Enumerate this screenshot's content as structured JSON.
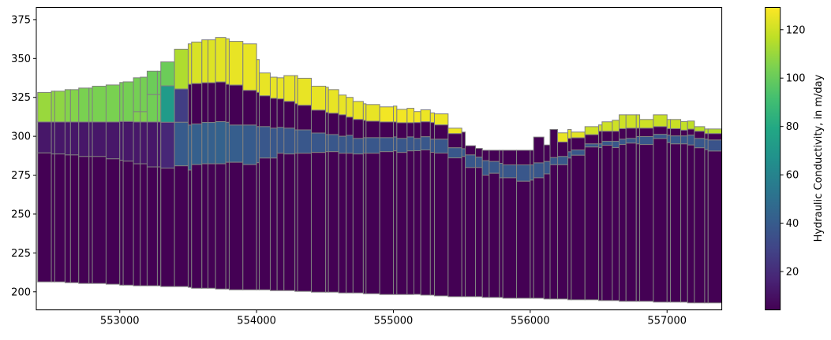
{
  "chart_data": {
    "type": "heatmap",
    "subtype": "cross-section",
    "title": "",
    "xlabel": "",
    "ylabel": "",
    "xlim": [
      552390,
      557400
    ],
    "ylim": [
      188.4,
      382.8
    ],
    "xticks": [
      553000,
      554000,
      555000,
      556000,
      557000
    ],
    "xtick_labels": [
      "553000",
      "554000",
      "555000",
      "556000",
      "557000"
    ],
    "yticks": [
      200,
      225,
      250,
      275,
      300,
      325,
      350,
      375
    ],
    "ytick_labels": [
      "200",
      "225",
      "250",
      "275",
      "300",
      "325",
      "350",
      "375"
    ],
    "grid": false,
    "edge_color": "#808080",
    "colormap": "viridis",
    "colorbar": {
      "label": "Hydraulic Conductivity, in m/day",
      "vmin": 4.15,
      "vmax": 129.2,
      "ticks": [
        20,
        40,
        60,
        80,
        100,
        120
      ],
      "tick_labels": [
        "20",
        "40",
        "60",
        "80",
        "100",
        "120"
      ]
    },
    "cell_format": "[x_start, x_end, [layer elevations top to bottom], [hydraulic conductivity per layer]]",
    "columns": [
      [
        552400,
        552500,
        [
          328.2,
          309.2,
          289.3,
          206.4
        ],
        [
          110,
          12,
          4.2
        ]
      ],
      [
        552500,
        552525,
        [
          329,
          309.2,
          288.6,
          206.4
        ],
        [
          108,
          12,
          4.2
        ]
      ],
      [
        552525,
        552600,
        [
          329,
          309.2,
          288.6,
          206.4
        ],
        [
          108,
          12,
          4.2
        ]
      ],
      [
        552600,
        552640,
        [
          330,
          309.2,
          288,
          205.9
        ],
        [
          106,
          12,
          4.2
        ]
      ],
      [
        552640,
        552700,
        [
          330,
          309.2,
          288,
          205.9
        ],
        [
          106,
          12,
          4.2
        ]
      ],
      [
        552700,
        552775,
        [
          331,
          309.2,
          287,
          205.4
        ],
        [
          104,
          12,
          4.2
        ]
      ],
      [
        552775,
        552800,
        [
          331,
          309.2,
          287,
          205.4
        ],
        [
          104,
          12,
          4.2
        ]
      ],
      [
        552800,
        552900,
        [
          332.2,
          309.2,
          287,
          205.4
        ],
        [
          104,
          12,
          4.2
        ]
      ],
      [
        552900,
        553000,
        [
          333,
          309.2,
          285.5,
          204.9
        ],
        [
          104,
          12,
          4.2
        ]
      ],
      [
        553000,
        553025,
        [
          334.6,
          309.5,
          284.5,
          204.3
        ],
        [
          103,
          12,
          4.2
        ]
      ],
      [
        553025,
        553100,
        [
          335,
          309.5,
          284,
          204.3
        ],
        [
          103,
          12,
          4.2
        ]
      ],
      [
        553100,
        553150,
        [
          337.6,
          315.8,
          309.2,
          282.3,
          203.9
        ],
        [
          103,
          105,
          12,
          4.2
        ]
      ],
      [
        553150,
        553200,
        [
          338,
          315.8,
          309.2,
          282.3,
          203.9
        ],
        [
          103,
          105,
          12,
          4.2
        ]
      ],
      [
        553200,
        553275,
        [
          341.9,
          326.8,
          309.2,
          280.3,
          203.9
        ],
        [
          101,
          102,
          12,
          4.2
        ]
      ],
      [
        553275,
        553300,
        [
          341.9,
          326.8,
          309.2,
          280.3,
          203.9
        ],
        [
          101,
          102,
          12,
          4.2
        ]
      ],
      [
        553300,
        553400,
        [
          347.8,
          332.4,
          309,
          279.5,
          203.4
        ],
        [
          101,
          72,
          18,
          4.2
        ]
      ],
      [
        553400,
        553500,
        [
          356,
          330.4,
          309,
          281,
          203.4
        ],
        [
          114,
          27,
          40,
          4.2
        ]
      ],
      [
        553500,
        553525,
        [
          359.4,
          333.4,
          307.2,
          278.3,
          202.9
        ],
        [
          122,
          4.2,
          42,
          4.2
        ]
      ],
      [
        553525,
        553600,
        [
          360.6,
          333.9,
          307.9,
          281.8,
          202.3
        ],
        [
          122,
          4.2,
          42,
          4.2
        ]
      ],
      [
        553600,
        553645,
        [
          362,
          334.4,
          308.9,
          282.3,
          202.3
        ],
        [
          123,
          4.2,
          42,
          4.2
        ]
      ],
      [
        553645,
        553700,
        [
          362,
          334.4,
          308.9,
          282.3,
          202.3
        ],
        [
          123,
          4.2,
          42,
          4.2
        ]
      ],
      [
        553700,
        553775,
        [
          363.5,
          334.9,
          309.4,
          282.3,
          201.8
        ],
        [
          124,
          4.2,
          43,
          4.2
        ]
      ],
      [
        553775,
        553800,
        [
          362.7,
          333.4,
          309,
          283.3,
          201.8
        ],
        [
          124,
          4.2,
          42,
          4.2
        ]
      ],
      [
        553800,
        553900,
        [
          361,
          332.9,
          307.2,
          283.3,
          201.3
        ],
        [
          125,
          4.2,
          41,
          4.2
        ]
      ],
      [
        553900,
        554000,
        [
          359.4,
          329.5,
          307.2,
          281.8,
          201.3
        ],
        [
          125,
          4.2,
          40,
          4.2
        ]
      ],
      [
        554000,
        554020,
        [
          349.3,
          328.2,
          306.2,
          283,
          201.3
        ],
        [
          125,
          4.2,
          39,
          4.2
        ]
      ],
      [
        554020,
        554100,
        [
          340.7,
          326,
          306.2,
          286,
          201.3
        ],
        [
          125,
          4.2,
          38,
          4.2
        ]
      ],
      [
        554100,
        554150,
        [
          338,
          324.4,
          305.2,
          286,
          200.8
        ],
        [
          125,
          4.2,
          38,
          4.2
        ]
      ],
      [
        554150,
        554200,
        [
          337.6,
          324,
          305.7,
          289.1,
          200.8
        ],
        [
          125,
          4.2,
          38,
          4.2
        ]
      ],
      [
        554200,
        554280,
        [
          339,
          322.4,
          305.2,
          288.6,
          200.8
        ],
        [
          125,
          4.2,
          38,
          4.2
        ]
      ],
      [
        554280,
        554300,
        [
          339,
          320.9,
          304.1,
          289.1,
          200.3
        ],
        [
          125,
          4.2,
          38,
          4.2
        ]
      ],
      [
        554300,
        554400,
        [
          337.3,
          319.9,
          304.1,
          289.1,
          200.3
        ],
        [
          125,
          4.2,
          38,
          4.2
        ]
      ],
      [
        554400,
        554505,
        [
          332.2,
          316.8,
          302.1,
          289.6,
          199.8
        ],
        [
          125,
          4.2,
          38,
          4.2
        ]
      ],
      [
        554505,
        554525,
        [
          331.5,
          315.3,
          301.1,
          290.1,
          199.8
        ],
        [
          125,
          4.2,
          38,
          4.2
        ]
      ],
      [
        554525,
        554600,
        [
          330,
          314.8,
          301.1,
          290.1,
          199.8
        ],
        [
          125,
          4.2,
          38,
          4.2
        ]
      ],
      [
        554600,
        554655,
        [
          326.5,
          313.8,
          300,
          289.1,
          199.3
        ],
        [
          125,
          4.2,
          38,
          4.2
        ]
      ],
      [
        554655,
        554705,
        [
          325,
          312.3,
          300.6,
          289.1,
          199.3
        ],
        [
          125,
          4.2,
          38,
          4.2
        ]
      ],
      [
        554705,
        554780,
        [
          322.4,
          310.8,
          298.6,
          288.6,
          199.3
        ],
        [
          125,
          4.2,
          38,
          4.2
        ]
      ],
      [
        554780,
        554800,
        [
          320.9,
          310.2,
          299.1,
          289.1,
          198.8
        ],
        [
          125,
          4.2,
          38,
          4.2
        ]
      ],
      [
        554800,
        554900,
        [
          320.4,
          309.7,
          299.1,
          289.1,
          198.8
        ],
        [
          125,
          4.2,
          38,
          4.2
        ]
      ],
      [
        554900,
        555000,
        [
          318.9,
          309.2,
          299.1,
          290.1,
          198.3
        ],
        [
          127,
          4.2,
          38,
          4.2
        ]
      ],
      [
        555000,
        555025,
        [
          319.4,
          309.2,
          299.6,
          290.6,
          198.3
        ],
        [
          126,
          4.2,
          38,
          4.2
        ]
      ],
      [
        555025,
        555100,
        [
          317.3,
          308.7,
          298.6,
          289.6,
          198.3
        ],
        [
          127,
          4.2,
          38,
          4.2
        ]
      ],
      [
        555100,
        555150,
        [
          318,
          308.7,
          299.6,
          290.6,
          198.3
        ],
        [
          127,
          4.2,
          38,
          4.2
        ]
      ],
      [
        555150,
        555200,
        [
          315.9,
          308.8,
          298.6,
          290.7,
          198.4
        ],
        [
          127,
          4.2,
          38,
          4.2
        ]
      ],
      [
        555200,
        555270,
        [
          317,
          309.3,
          299.7,
          291.2,
          197.9
        ],
        [
          126,
          4.2,
          38,
          4.2
        ]
      ],
      [
        555270,
        555300,
        [
          315,
          308.8,
          298.1,
          289.7,
          197.9
        ],
        [
          126,
          4.2,
          38,
          4.2
        ]
      ],
      [
        555300,
        555400,
        [
          314.4,
          307.3,
          298.1,
          289.2,
          197.4
        ],
        [
          126,
          4.2,
          38,
          4.2
        ]
      ],
      [
        555400,
        555500,
        [
          305.2,
          301.7,
          292.6,
          286.1,
          196.9
        ],
        [
          126,
          4.2,
          38,
          4.2
        ]
      ],
      [
        555500,
        555525,
        [
          302.7,
          292,
          287,
          196.9
        ],
        [
          4.2,
          38,
          4.2
        ]
      ],
      [
        555525,
        555600,
        [
          293.9,
          288,
          279.9,
          196.9
        ],
        [
          4.2,
          38,
          4.2
        ]
      ],
      [
        555600,
        555650,
        [
          292.2,
          286.6,
          279.9,
          196.9
        ],
        [
          4.2,
          38,
          4.2
        ]
      ],
      [
        555650,
        555700,
        [
          291,
          284.3,
          275,
          196.4
        ],
        [
          4.2,
          38,
          4.2
        ]
      ],
      [
        555700,
        555775,
        [
          291,
          283.8,
          276.2,
          196.4
        ],
        [
          4.2,
          38,
          4.2
        ]
      ],
      [
        555775,
        555800,
        [
          291,
          282.6,
          273.3,
          196.4
        ],
        [
          4.2,
          38,
          4.2
        ]
      ],
      [
        555800,
        555900,
        [
          291,
          281.6,
          273.3,
          195.9
        ],
        [
          4.2,
          38,
          4.2
        ]
      ],
      [
        555900,
        556000,
        [
          291,
          281.6,
          271.1,
          195.9
        ],
        [
          4.2,
          38,
          4.2
        ]
      ],
      [
        556000,
        556025,
        [
          291,
          281.6,
          271.8,
          195.9
        ],
        [
          4.2,
          38,
          4.2
        ]
      ],
      [
        556025,
        556100,
        [
          299.5,
          282.9,
          273.3,
          195.9
        ],
        [
          4.2,
          38,
          4.2
        ]
      ],
      [
        556100,
        556145,
        [
          294.4,
          283.8,
          275.8,
          195.4
        ],
        [
          4.2,
          38,
          4.2
        ]
      ],
      [
        556145,
        556200,
        [
          304.4,
          286.3,
          281.7,
          195.4
        ],
        [
          4.2,
          38,
          4.2
        ]
      ],
      [
        556200,
        556275,
        [
          302.2,
          296.3,
          287,
          281.7,
          195.4
        ],
        [
          125,
          4.2,
          38,
          4.2
        ]
      ],
      [
        556275,
        556300,
        [
          304.4,
          298.6,
          290,
          286,
          194.9
        ],
        [
          124,
          4.2,
          38,
          4.2
        ]
      ],
      [
        556300,
        556400,
        [
          302.7,
          299,
          291.2,
          287.8,
          194.9
        ],
        [
          124,
          4.2,
          38,
          4.2
        ]
      ],
      [
        556400,
        556500,
        [
          306.2,
          301,
          295.1,
          293.1,
          194.9
        ],
        [
          120,
          4.2,
          38,
          4.2
        ]
      ],
      [
        556500,
        556525,
        [
          307.3,
          303.2,
          295.1,
          292.7,
          194.4
        ],
        [
          120,
          4.2,
          38,
          4.2
        ]
      ],
      [
        556525,
        556600,
        [
          309.3,
          303.2,
          296.8,
          294.2,
          194.4
        ],
        [
          120,
          4.2,
          38,
          4.2
        ]
      ],
      [
        556600,
        556650,
        [
          310.3,
          303.2,
          296.8,
          292.7,
          194.4
        ],
        [
          120,
          4.2,
          38,
          4.2
        ]
      ],
      [
        556650,
        556700,
        [
          313.8,
          304.9,
          298.1,
          294.7,
          193.9
        ],
        [
          120,
          4.2,
          38,
          4.2
        ]
      ],
      [
        556700,
        556775,
        [
          313.8,
          305.2,
          298.6,
          295.6,
          193.9
        ],
        [
          120,
          4.2,
          38,
          4.2
        ]
      ],
      [
        556775,
        556800,
        [
          313.8,
          305.2,
          299.8,
          295.1,
          193.9
        ],
        [
          120,
          4.2,
          38,
          4.2
        ]
      ],
      [
        556800,
        556900,
        [
          310.8,
          305.2,
          299.8,
          294.7,
          193.9
        ],
        [
          120,
          4.2,
          38,
          4.2
        ]
      ],
      [
        556900,
        557000,
        [
          313.8,
          306.2,
          301.2,
          298.5,
          193.4
        ],
        [
          119,
          4.2,
          38,
          4.2
        ]
      ],
      [
        557000,
        557025,
        [
          310.8,
          304.9,
          300.7,
          295.9,
          193.4
        ],
        [
          119,
          4.2,
          38,
          4.2
        ]
      ],
      [
        557025,
        557100,
        [
          310.8,
          304.9,
          300.2,
          295.1,
          193.4
        ],
        [
          119,
          4.2,
          38,
          4.2
        ]
      ],
      [
        557100,
        557150,
        [
          309.5,
          303.9,
          300.2,
          295.1,
          193.4
        ],
        [
          118,
          4.2,
          38,
          4.2
        ]
      ],
      [
        557150,
        557200,
        [
          309.8,
          304.6,
          300.7,
          294.4,
          192.9
        ],
        [
          117,
          4.2,
          38,
          4.2
        ]
      ],
      [
        557200,
        557275,
        [
          306.2,
          303.2,
          298.6,
          292.6,
          192.9
        ],
        [
          116,
          4.2,
          38,
          4.2
        ]
      ],
      [
        557275,
        557300,
        [
          304.7,
          301.7,
          298.1,
          291.4,
          192.9
        ],
        [
          116,
          4.2,
          38,
          4.2
        ]
      ],
      [
        557300,
        557400,
        [
          304.7,
          301.7,
          297.6,
          290.5,
          192.9
        ],
        [
          115,
          4.2,
          36,
          4.2
        ]
      ]
    ]
  }
}
